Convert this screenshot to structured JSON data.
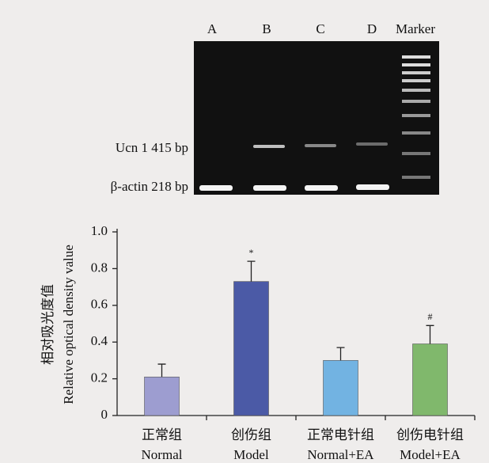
{
  "chart_data": {
    "type": "bar",
    "gel_lanes": [
      "A",
      "B",
      "C",
      "D",
      "Marker"
    ],
    "gel_band_labels": [
      "Ucn 1 415 bp",
      "β-actin 218 bp"
    ],
    "ylabel": [
      "相对吸光度值",
      "Relative optical density value"
    ],
    "categories": [
      [
        "正常组",
        "Normal"
      ],
      [
        "创伤组",
        "Model"
      ],
      [
        "正常电针组",
        "Normal+EA"
      ],
      [
        "创伤电针组",
        "Model+EA"
      ]
    ],
    "values": [
      0.21,
      0.73,
      0.3,
      0.39
    ],
    "errors": [
      0.07,
      0.11,
      0.07,
      0.1
    ],
    "value_annotations": [
      null,
      "*",
      null,
      "#"
    ],
    "colors": [
      "#9d9dd0",
      "#4b5aa6",
      "#72b3e2",
      "#80b86c"
    ],
    "ylim": [
      0,
      1
    ],
    "yticks": [
      0,
      0.2,
      0.4,
      0.6,
      0.8,
      {
        "value": 1,
        "label": "1.0"
      }
    ]
  }
}
